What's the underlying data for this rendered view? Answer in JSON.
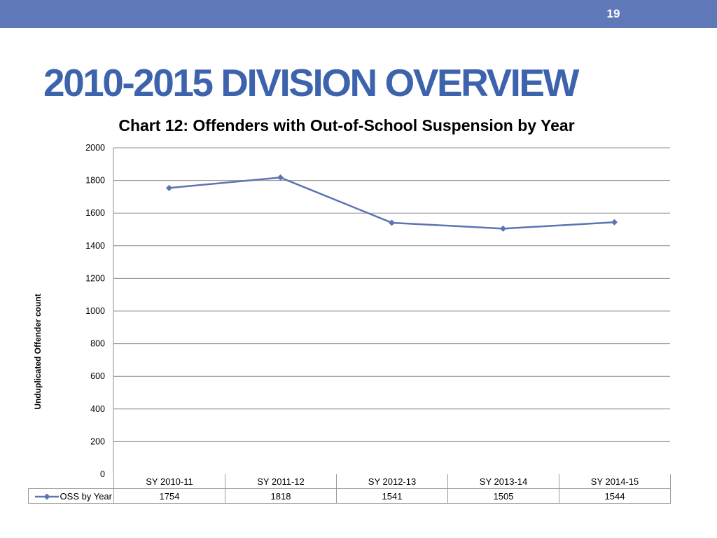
{
  "slide": {
    "number": "19",
    "title": "2010-2015 DIVISION OVERVIEW",
    "colors": {
      "header_bar": "#5f78b7",
      "title": "#3d63ad"
    }
  },
  "chart_data": {
    "type": "line",
    "title": "Chart 12:  Offenders with Out-of-School Suspension by Year",
    "ylabel": "Unduplicated Offender count",
    "xlabel": "",
    "categories": [
      "SY 2010-11",
      "SY 2011-12",
      "SY 2012-13",
      "SY 2013-14",
      "SY 2014-15"
    ],
    "series": [
      {
        "name": "OSS by Year",
        "values": [
          1754,
          1818,
          1541,
          1505,
          1544
        ],
        "color": "#5b74b2",
        "marker": "diamond"
      }
    ],
    "ylim": [
      0,
      2000
    ],
    "yticks": [
      0,
      200,
      400,
      600,
      800,
      1000,
      1200,
      1400,
      1600,
      1800,
      2000
    ],
    "grid": true,
    "legend": "data-table-bottom",
    "data_table": true
  }
}
